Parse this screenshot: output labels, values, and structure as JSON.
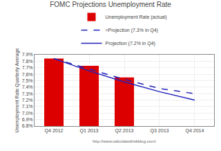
{
  "chart_data": {
    "type": "bar",
    "title": "FOMC Projections Unemployment Rate",
    "ylabel": "Unemployment Rate Quarterly Average",
    "categories": [
      "Q4 2012",
      "Q1 2013",
      "Q2 2013",
      "Q3 2013",
      "Q4 2014"
    ],
    "series": [
      {
        "name": "Unemployment Rate (actual)",
        "type": "bar",
        "color": "#dd0000",
        "values": [
          7.84,
          7.73,
          7.55,
          null,
          null
        ]
      },
      {
        "name": "=Projection (7.3% in Q4)",
        "type": "line",
        "color": "#2222bb",
        "line_style": "dashed",
        "values": [
          7.84,
          7.68,
          7.52,
          7.38,
          7.3
        ]
      },
      {
        "name": "Projection (7.2% in Q4)",
        "type": "line",
        "color": "#2222bb",
        "line_style": "solid",
        "values": [
          7.84,
          7.65,
          7.48,
          7.33,
          7.2
        ]
      }
    ],
    "ylim": [
      6.8,
      7.9
    ],
    "yticks": [
      {
        "value": 6.8,
        "label": "6.8%"
      },
      {
        "value": 6.9,
        "label": "6.9%"
      },
      {
        "value": 7.0,
        "label": "7.0%"
      },
      {
        "value": 7.1,
        "label": "7.1%"
      },
      {
        "value": 7.2,
        "label": "7.2%"
      },
      {
        "value": 7.3,
        "label": "7.3%"
      },
      {
        "value": 7.4,
        "label": "7.4%"
      },
      {
        "value": 7.5,
        "label": "7.5%"
      },
      {
        "value": 7.6,
        "label": "7.6%"
      },
      {
        "value": 7.7,
        "label": "7.7%"
      },
      {
        "value": 7.8,
        "label": "7.8%"
      },
      {
        "value": 7.9,
        "label": "7.9%"
      }
    ],
    "grid": true,
    "legend": "top",
    "annotations": [
      "http://www.calculatedriskblog.com/"
    ]
  }
}
